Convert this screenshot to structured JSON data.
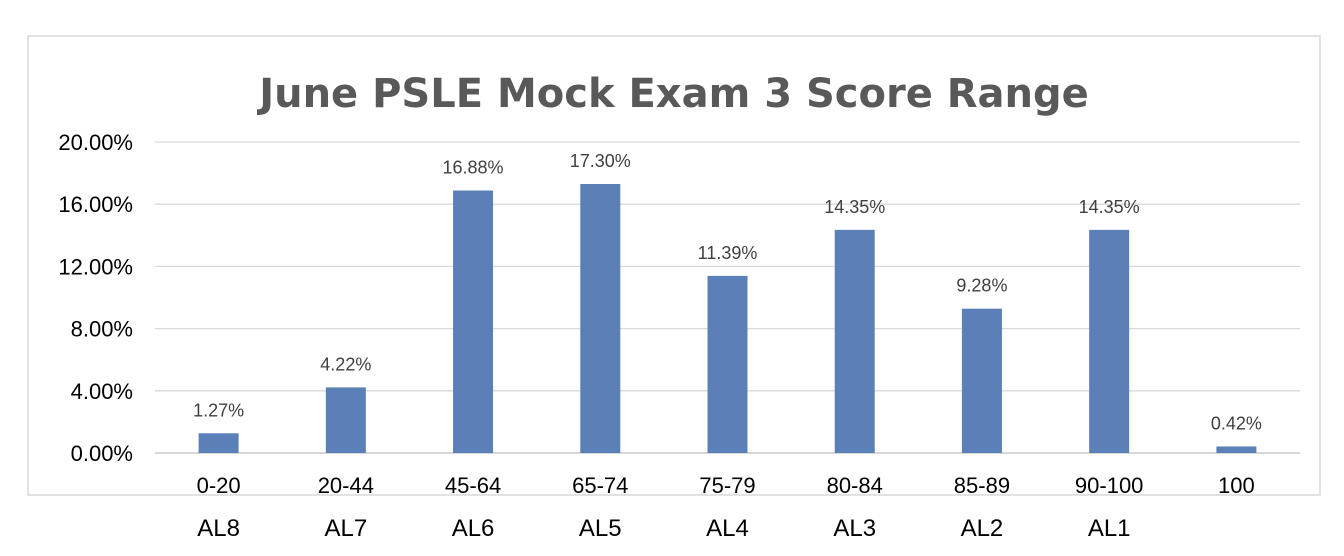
{
  "chart_data": {
    "type": "bar",
    "title": "June PSLE Mock Exam 3 Score Range",
    "categories": [
      "0-20",
      "20-44",
      "45-64",
      "65-74",
      "75-79",
      "80-84",
      "85-89",
      "90-100",
      "100"
    ],
    "values": [
      1.27,
      4.22,
      16.88,
      17.3,
      11.39,
      14.35,
      9.28,
      14.35,
      0.42
    ],
    "data_labels": [
      "1.27%",
      "4.22%",
      "16.88%",
      "17.30%",
      "11.39%",
      "14.35%",
      "9.28%",
      "14.35%",
      "0.42%"
    ],
    "y_ticks": [
      "0.00%",
      "4.00%",
      "8.00%",
      "12.00%",
      "16.00%",
      "20.00%"
    ],
    "y_tick_values": [
      0,
      4,
      8,
      12,
      16,
      20
    ],
    "ylim": [
      0,
      20
    ],
    "grid": true,
    "legend": "none",
    "bar_color": "#5b80b8",
    "xlabel": "",
    "ylabel": "",
    "al_labels": [
      "AL8",
      "AL7",
      "AL6",
      "AL5",
      "AL4",
      "AL3",
      "AL2",
      "AL1"
    ]
  }
}
